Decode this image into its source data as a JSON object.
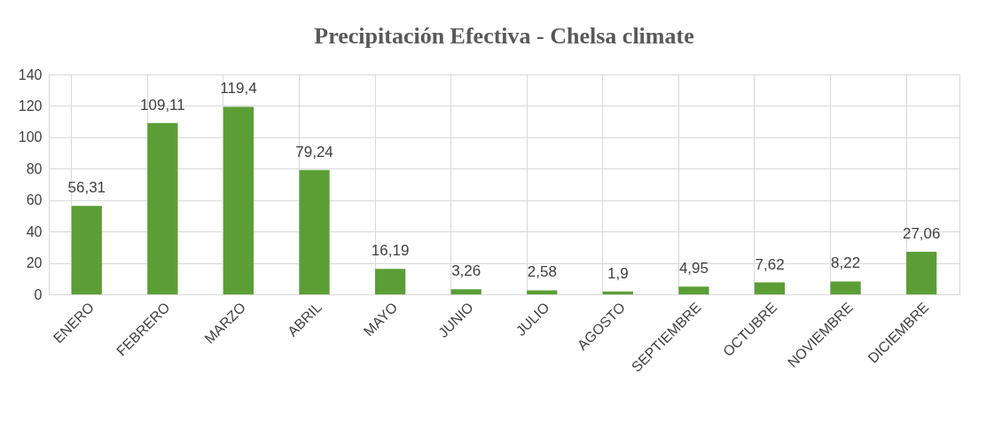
{
  "chart_data": {
    "type": "bar",
    "title": "Precipitación Efectiva - Chelsa climate",
    "categories": [
      "ENERO",
      "FEBRERO",
      "MARZO",
      "ABRIL",
      "MAYO",
      "JUNIO",
      "JULIO",
      "AGOSTO",
      "SEPTIEMBRE",
      "OCTUBRE",
      "NOVIEMBRE",
      "DICIEMBRE"
    ],
    "values": [
      56.31,
      109.11,
      119.4,
      79.24,
      16.19,
      3.26,
      2.58,
      1.9,
      4.95,
      7.62,
      8.22,
      27.06
    ],
    "value_labels": [
      "56,31",
      "109,11",
      "119,4",
      "79,24",
      "16,19",
      "3,26",
      "2,58",
      "1,9",
      "4,95",
      "7,62",
      "8,22",
      "27,06"
    ],
    "color": "#5b9e36",
    "ylim": [
      0,
      140
    ],
    "yticks": [
      0,
      20,
      40,
      60,
      80,
      100,
      120,
      140
    ],
    "grid": true
  }
}
